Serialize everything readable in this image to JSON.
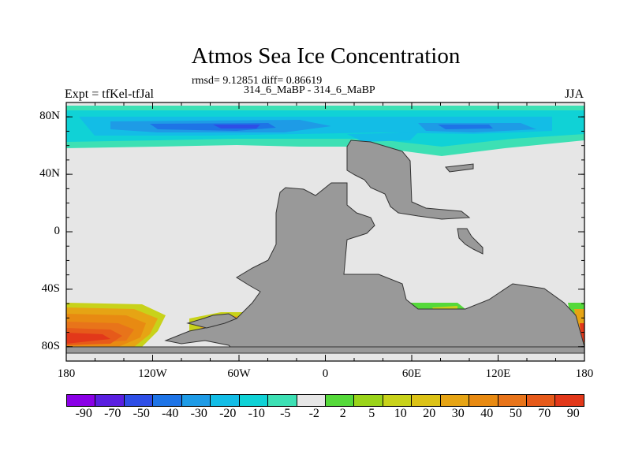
{
  "header": {
    "title": "Atmos Sea Ice Concentration",
    "stats": "rmsd= 9.12851 diff= 0.86619",
    "subtitle": "314_6_MaBP - 314_6_MaBP",
    "left_label": "Expt = tfKel-tfJal",
    "right_label": "JJA"
  },
  "axes": {
    "y_ticks": [
      "80N",
      "40N",
      "0",
      "40S",
      "80S"
    ],
    "x_ticks": [
      "180",
      "120W",
      "60W",
      "0",
      "60E",
      "120E",
      "180"
    ]
  },
  "map": {
    "land_color": "#999999",
    "ocean_color": "#e6e6e6",
    "projection": "cylindrical equidistant",
    "lon_range": [
      -180,
      180
    ],
    "lat_range": [
      -90,
      90
    ]
  },
  "colorbar": {
    "colors": [
      "#8a00e6",
      "#5a1fe0",
      "#2e4ee6",
      "#1e74e6",
      "#1e9be6",
      "#13bde6",
      "#10d2d6",
      "#3de0b4",
      "#e6e6e6",
      "#55d93a",
      "#9ad41a",
      "#c8d21a",
      "#dcc216",
      "#e6a414",
      "#e88a12",
      "#e8741a",
      "#e65a1a",
      "#e2381a"
    ],
    "labels": [
      "-90",
      "-70",
      "-50",
      "-40",
      "-30",
      "-20",
      "-10",
      "-5",
      "-2",
      "2",
      "5",
      "10",
      "20",
      "30",
      "40",
      "50",
      "70",
      "90"
    ]
  }
}
